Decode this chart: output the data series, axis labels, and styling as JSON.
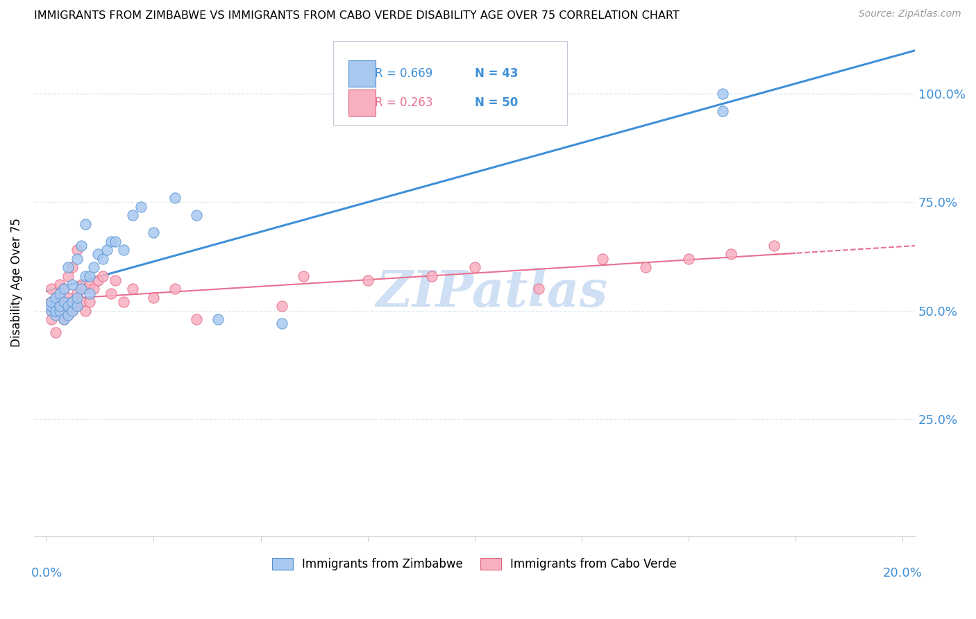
{
  "title": "IMMIGRANTS FROM ZIMBABWE VS IMMIGRANTS FROM CABO VERDE DISABILITY AGE OVER 75 CORRELATION CHART",
  "source": "Source: ZipAtlas.com",
  "legend_label_zim": "Immigrants from Zimbabwe",
  "legend_label_cabo": "Immigrants from Cabo Verde",
  "R_zim": 0.669,
  "N_zim": 43,
  "R_cabo": 0.263,
  "N_cabo": 50,
  "color_zim_fill": "#a8c8f0",
  "color_zim_edge": "#5090d0",
  "color_cabo_fill": "#f8b0c0",
  "color_cabo_edge": "#e06080",
  "color_zim_line": "#4090d8",
  "color_cabo_line": "#e87090",
  "color_axis_blue": "#4090d8",
  "watermark_color": "#d0e0f4",
  "grid_color": "#e0e8f0",
  "xmin": 0.0,
  "xmax": 0.2,
  "ymin": 0.0,
  "ymax": 1.15,
  "yticks": [
    0.25,
    0.5,
    0.75,
    1.0
  ],
  "ytick_labels": [
    "25.0%",
    "50.0%",
    "75.0%",
    "100.0%"
  ],
  "zim_x": [
    0.001,
    0.001,
    0.001,
    0.002,
    0.002,
    0.002,
    0.003,
    0.003,
    0.003,
    0.004,
    0.004,
    0.004,
    0.005,
    0.005,
    0.005,
    0.006,
    0.006,
    0.006,
    0.007,
    0.007,
    0.007,
    0.008,
    0.008,
    0.009,
    0.009,
    0.01,
    0.01,
    0.011,
    0.012,
    0.013,
    0.014,
    0.015,
    0.016,
    0.018,
    0.02,
    0.022,
    0.025,
    0.03,
    0.035,
    0.04,
    0.055,
    0.158,
    0.158
  ],
  "zim_y": [
    0.5,
    0.51,
    0.52,
    0.49,
    0.5,
    0.53,
    0.5,
    0.51,
    0.54,
    0.48,
    0.52,
    0.55,
    0.49,
    0.51,
    0.6,
    0.5,
    0.52,
    0.56,
    0.51,
    0.53,
    0.62,
    0.55,
    0.65,
    0.58,
    0.7,
    0.54,
    0.58,
    0.6,
    0.63,
    0.62,
    0.64,
    0.66,
    0.66,
    0.64,
    0.72,
    0.74,
    0.68,
    0.76,
    0.72,
    0.48,
    0.47,
    1.0,
    0.96
  ],
  "cabo_x": [
    0.001,
    0.001,
    0.001,
    0.001,
    0.002,
    0.002,
    0.002,
    0.002,
    0.003,
    0.003,
    0.003,
    0.004,
    0.004,
    0.004,
    0.005,
    0.005,
    0.005,
    0.006,
    0.006,
    0.006,
    0.007,
    0.007,
    0.007,
    0.008,
    0.008,
    0.009,
    0.009,
    0.01,
    0.01,
    0.011,
    0.012,
    0.013,
    0.015,
    0.016,
    0.018,
    0.02,
    0.025,
    0.03,
    0.035,
    0.055,
    0.06,
    0.075,
    0.09,
    0.1,
    0.115,
    0.13,
    0.14,
    0.15,
    0.16,
    0.17
  ],
  "cabo_y": [
    0.5,
    0.52,
    0.55,
    0.48,
    0.5,
    0.51,
    0.53,
    0.45,
    0.5,
    0.52,
    0.56,
    0.48,
    0.51,
    0.55,
    0.49,
    0.53,
    0.58,
    0.5,
    0.52,
    0.6,
    0.51,
    0.54,
    0.64,
    0.52,
    0.56,
    0.5,
    0.55,
    0.52,
    0.56,
    0.55,
    0.57,
    0.58,
    0.54,
    0.57,
    0.52,
    0.55,
    0.53,
    0.55,
    0.48,
    0.51,
    0.58,
    0.57,
    0.58,
    0.6,
    0.55,
    0.62,
    0.6,
    0.62,
    0.63,
    0.65
  ]
}
